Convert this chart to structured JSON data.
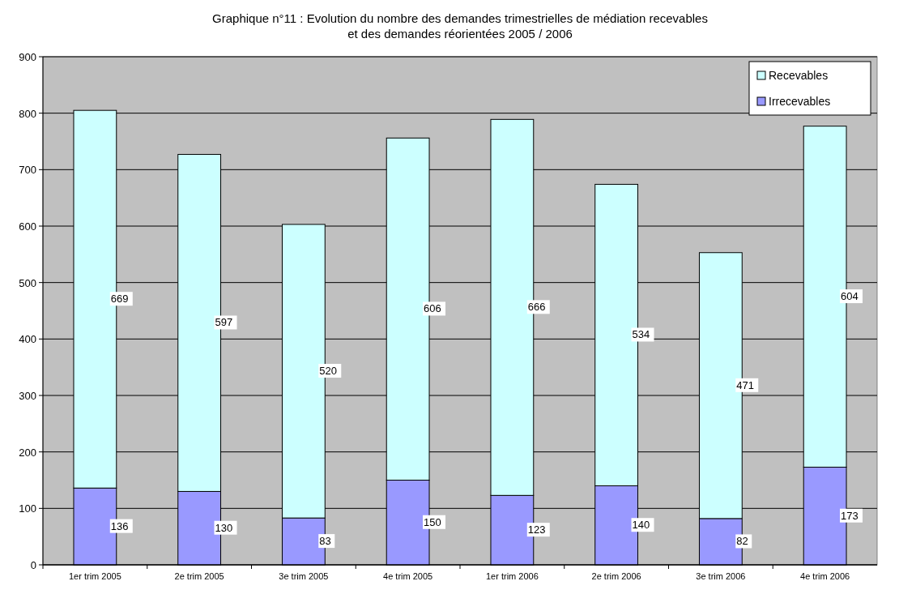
{
  "chart_data": {
    "type": "bar",
    "title": "Graphique n°11 : Evolution du nombre des demandes trimestrielles de médiation recevables\net des demandes réorientées 2005 / 2006",
    "categories": [
      "1er trim 2005",
      "2e trim 2005",
      "3e trim 2005",
      "4e trim 2005",
      "1er trim 2006",
      "2e trim 2006",
      "3e trim 2006",
      "4e trim 2006"
    ],
    "stacked": true,
    "series": [
      {
        "name": "Irrecevables",
        "color": "#9999ff",
        "values": [
          136,
          130,
          83,
          150,
          123,
          140,
          82,
          173
        ]
      },
      {
        "name": "Recevables",
        "color": "#ccffff",
        "values": [
          669,
          597,
          520,
          606,
          666,
          534,
          471,
          604
        ]
      }
    ],
    "ylim": [
      0,
      900
    ],
    "yticks": [
      0,
      100,
      200,
      300,
      400,
      500,
      600,
      700,
      800,
      900
    ],
    "grid": "y",
    "legend": "top right",
    "data_labels": true
  }
}
